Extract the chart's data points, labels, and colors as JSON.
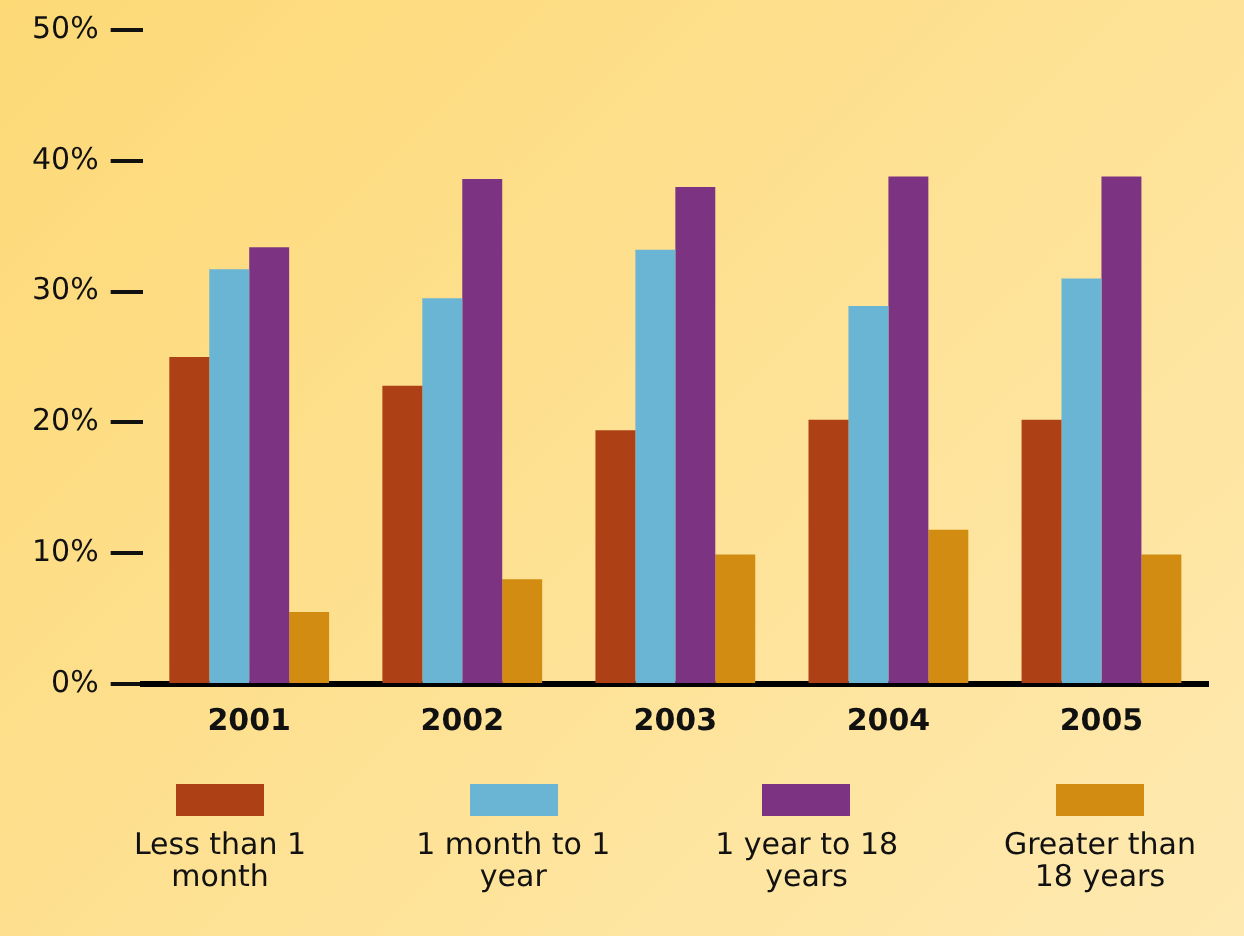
{
  "chart_data": {
    "type": "bar",
    "categories": [
      "2001",
      "2002",
      "2003",
      "2004",
      "2005"
    ],
    "series": [
      {
        "name": "Less than 1 month",
        "color": "#ae4016",
        "values": [
          25,
          22.8,
          19.4,
          20.2,
          20.2
        ]
      },
      {
        "name": "1 month to 1 year",
        "color": "#6ab4d4",
        "values": [
          31.7,
          29.5,
          33.2,
          28.9,
          31
        ]
      },
      {
        "name": "1 year to 18 years",
        "color": "#7c3482",
        "values": [
          33.4,
          38.6,
          38,
          38.8,
          38.8
        ]
      },
      {
        "name": "Greater than 18 years",
        "color": "#d28c12",
        "values": [
          5.5,
          8,
          9.9,
          11.8,
          9.9
        ]
      }
    ],
    "ylim": [
      0,
      50
    ],
    "yticks": [
      {
        "value": 0,
        "label": "0%"
      },
      {
        "value": 10,
        "label": "10%"
      },
      {
        "value": 20,
        "label": "20%"
      },
      {
        "value": 30,
        "label": "30%"
      },
      {
        "value": 40,
        "label": "40%"
      },
      {
        "value": 50,
        "label": "50%"
      }
    ],
    "grid": false,
    "legend": "bottom"
  }
}
